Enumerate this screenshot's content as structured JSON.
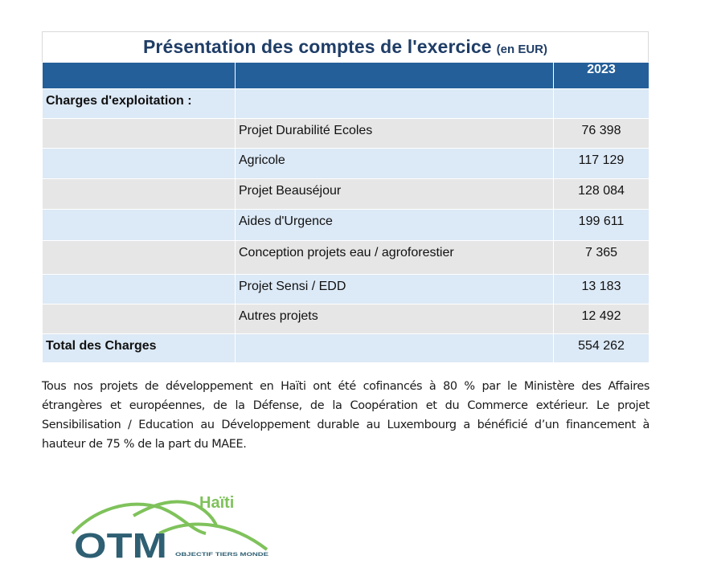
{
  "report": {
    "title_main": "Présentation des comptes de l'exercice",
    "title_unit": "(en EUR)",
    "header": {
      "col1": "",
      "col2": "",
      "year": "2023"
    },
    "section_label": "Charges d'exploitation :",
    "rows": [
      {
        "label": "Projet Durabilité Ecoles",
        "value": "76 398"
      },
      {
        "label": "Agricole",
        "value": "117 129"
      },
      {
        "label": "Projet Beauséjour",
        "value": "128 084"
      },
      {
        "label": "Aides d'Urgence",
        "value": "199 611"
      },
      {
        "label": "Conception projets eau / agroforestier",
        "value": "7 365"
      },
      {
        "label": "Projet Sensi / EDD",
        "value": "13 183"
      },
      {
        "label": "Autres projets",
        "value": "12 492"
      }
    ],
    "total": {
      "label": "Total des Charges",
      "value": "554 262"
    },
    "colors": {
      "header_bg": "#255f99",
      "title": "#1f3d66",
      "row_blue": "#dce9f6",
      "row_grey": "#e6e6e6"
    }
  },
  "footnote": "Tous nos projets de développement en Haïti ont été cofinancés à 80 % par le Ministère des Affaires étrangères et européennes, de la Défense, de la Coopération et du Commerce extérieur. Le projet Sensibilisation / Education au Développement durable au Luxembourg a bénéficié d’un financement à hauteur de 75 % de la part du MAEE.",
  "logo": {
    "country": "Haïti",
    "name": "OTM",
    "tagline": "OBJECTIF TIERS MONDE",
    "colors": {
      "green": "#7fc25b",
      "navy": "#2e5f73"
    }
  }
}
